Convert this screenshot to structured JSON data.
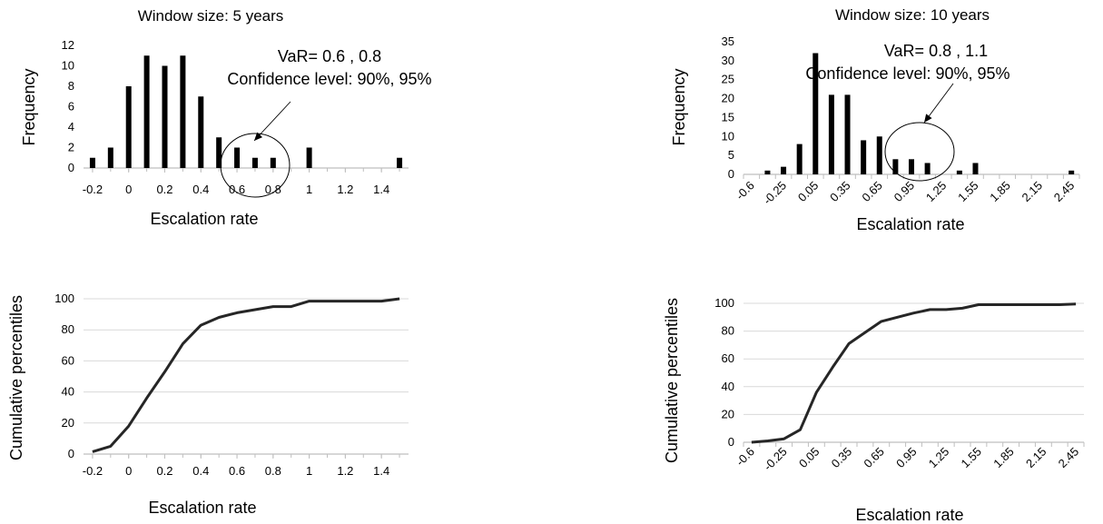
{
  "chart_data": [
    {
      "type": "bar",
      "title": "Window size: 5 years",
      "xlabel": "Escalation rate",
      "ylabel": "Frequency",
      "x": [
        -0.2,
        -0.1,
        0.0,
        0.1,
        0.2,
        0.3,
        0.4,
        0.5,
        0.6,
        0.7,
        0.8,
        0.9,
        1.0,
        1.1,
        1.2,
        1.3,
        1.4,
        1.5
      ],
      "values": [
        1,
        2,
        8,
        11,
        10,
        11,
        7,
        3,
        2,
        1,
        1,
        0,
        2,
        0,
        0,
        0,
        0,
        1
      ],
      "xticks": [
        "-0.2",
        "0",
        "0.2",
        "0.4",
        "0.6",
        "0.8",
        "1",
        "1.2",
        "1.4"
      ],
      "yticks": [
        "0",
        "2",
        "4",
        "6",
        "8",
        "10",
        "12"
      ],
      "xlim": [
        -0.25,
        1.55
      ],
      "ylim": [
        0,
        12
      ],
      "grid": false,
      "annotation": {
        "line1": "VaR= 0.6 , 0.8",
        "line2": "Confidence level: 90%, 95%"
      }
    },
    {
      "type": "bar",
      "title": "Window size: 10 years",
      "xlabel": "Escalation rate",
      "ylabel": "Frequency",
      "x": [
        -0.6,
        -0.45,
        -0.3,
        -0.15,
        0.0,
        0.15,
        0.3,
        0.45,
        0.6,
        0.75,
        0.9,
        1.05,
        1.2,
        1.35,
        1.5,
        1.65,
        1.8,
        1.95,
        2.1,
        2.25,
        2.4
      ],
      "values": [
        0,
        1,
        2,
        8,
        32,
        21,
        21,
        9,
        10,
        4,
        4,
        3,
        0,
        1,
        3,
        0,
        0,
        0,
        0,
        0,
        1
      ],
      "xticks": [
        "-0.6",
        "-0.25",
        "0.05",
        "0.35",
        "0.65",
        "0.95",
        "1.25",
        "1.55",
        "1.85",
        "2.15",
        "2.45"
      ],
      "yticks": [
        "0",
        "5",
        "10",
        "15",
        "20",
        "25",
        "30",
        "35"
      ],
      "ylim": [
        0,
        35
      ],
      "grid": false,
      "annotation": {
        "line1": "VaR= 0.8 , 1.1",
        "line2": "Confidence level: 90%, 95%"
      }
    },
    {
      "type": "line",
      "xlabel": "Escalation rate",
      "ylabel": "Cumulative percentiles",
      "x": [
        -0.2,
        -0.1,
        0.0,
        0.1,
        0.2,
        0.3,
        0.4,
        0.5,
        0.6,
        0.7,
        0.8,
        0.9,
        1.0,
        1.1,
        1.2,
        1.3,
        1.4,
        1.5
      ],
      "values": [
        1.5,
        5,
        18,
        36,
        53,
        71,
        83,
        88,
        91,
        93,
        95,
        95,
        98.5,
        98.5,
        98.5,
        98.5,
        98.5,
        100
      ],
      "xticks": [
        "-0.2",
        "0",
        "0.2",
        "0.4",
        "0.6",
        "0.8",
        "1",
        "1.2",
        "1.4"
      ],
      "yticks": [
        "0",
        "20",
        "40",
        "60",
        "80",
        "100"
      ],
      "xlim": [
        -0.25,
        1.55
      ],
      "ylim": [
        0,
        100
      ],
      "grid": true
    },
    {
      "type": "line",
      "xlabel": "Escalation rate",
      "ylabel": "Cumulative percentiles",
      "x": [
        -0.6,
        -0.45,
        -0.3,
        -0.15,
        0.0,
        0.15,
        0.3,
        0.45,
        0.6,
        0.75,
        0.9,
        1.05,
        1.2,
        1.35,
        1.5,
        1.65,
        1.8,
        1.95,
        2.1,
        2.25,
        2.4
      ],
      "values": [
        0,
        1,
        2.5,
        9,
        36,
        54,
        71,
        79,
        87,
        90,
        93,
        95.5,
        95.5,
        96.5,
        99,
        99,
        99,
        99,
        99,
        99,
        99.5
      ],
      "xticks": [
        "-0.6",
        "-0.25",
        "0.05",
        "0.35",
        "0.65",
        "0.95",
        "1.25",
        "1.55",
        "1.85",
        "2.15",
        "2.45"
      ],
      "yticks": [
        "0",
        "20",
        "40",
        "60",
        "80",
        "100"
      ],
      "ylim": [
        0,
        100
      ],
      "grid": true
    }
  ]
}
